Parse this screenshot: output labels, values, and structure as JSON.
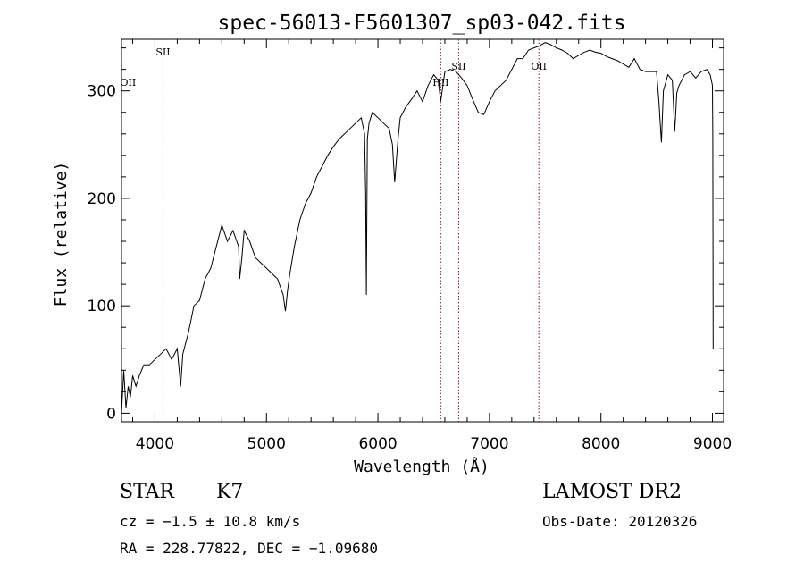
{
  "chart_data": {
    "type": "line",
    "title": "spec-56013-F5601307_sp03-042.fits",
    "xlabel": "Wavelength (Å)",
    "ylabel": "Flux (relative)",
    "xlim": [
      3700,
      9100
    ],
    "ylim": [
      -8,
      348
    ],
    "xticks": [
      4000,
      5000,
      6000,
      7000,
      8000,
      9000
    ],
    "yticks": [
      0,
      100,
      200,
      300
    ],
    "grid": false,
    "series": [
      {
        "x": [
          3700,
          3720,
          3740,
          3760,
          3780,
          3800,
          3830,
          3860,
          3900,
          3950,
          4000,
          4050,
          4100,
          4150,
          4200,
          4230,
          4250,
          4300,
          4350,
          4400,
          4450,
          4500,
          4550,
          4600,
          4650,
          4700,
          4750,
          4760,
          4780,
          4800,
          4850,
          4900,
          4950,
          5000,
          5050,
          5100,
          5150,
          5170,
          5190,
          5210,
          5250,
          5300,
          5350,
          5400,
          5450,
          5500,
          5550,
          5600,
          5650,
          5700,
          5750,
          5800,
          5850,
          5880,
          5890,
          5896,
          5905,
          5920,
          5950,
          6000,
          6050,
          6100,
          6130,
          6150,
          6180,
          6200,
          6250,
          6300,
          6350,
          6400,
          6450,
          6500,
          6540,
          6563,
          6600,
          6650,
          6700,
          6750,
          6800,
          6850,
          6900,
          6950,
          7000,
          7050,
          7100,
          7150,
          7200,
          7250,
          7300,
          7350,
          7400,
          7450,
          7500,
          7550,
          7600,
          7650,
          7700,
          7750,
          7800,
          7850,
          7900,
          7950,
          8000,
          8050,
          8100,
          8150,
          8200,
          8250,
          8300,
          8350,
          8400,
          8450,
          8498,
          8520,
          8542,
          8560,
          8600,
          8640,
          8662,
          8680,
          8700,
          8750,
          8800,
          8850,
          8900,
          8950,
          8980,
          9000,
          9003,
          9006
        ],
        "y": [
          0,
          40,
          5,
          25,
          15,
          35,
          25,
          35,
          45,
          45,
          50,
          55,
          60,
          50,
          60,
          25,
          55,
          75,
          100,
          105,
          125,
          135,
          155,
          175,
          160,
          170,
          155,
          125,
          145,
          170,
          160,
          145,
          140,
          135,
          130,
          125,
          110,
          95,
          115,
          130,
          155,
          180,
          195,
          205,
          220,
          230,
          240,
          248,
          255,
          260,
          265,
          270,
          275,
          260,
          205,
          110,
          255,
          270,
          280,
          275,
          270,
          265,
          250,
          215,
          255,
          275,
          285,
          292,
          300,
          290,
          305,
          315,
          310,
          290,
          318,
          320,
          318,
          312,
          305,
          292,
          280,
          278,
          290,
          300,
          305,
          310,
          320,
          330,
          330,
          338,
          340,
          342,
          345,
          343,
          340,
          338,
          335,
          330,
          333,
          336,
          338,
          336,
          335,
          332,
          330,
          328,
          325,
          322,
          330,
          320,
          318,
          318,
          318,
          290,
          252,
          300,
          315,
          310,
          262,
          298,
          305,
          315,
          318,
          312,
          318,
          320,
          315,
          305,
          260,
          60
        ]
      }
    ],
    "lines": [
      {
        "label": "SII",
        "x": 4072
      },
      {
        "label": "OII",
        "x": 3727
      },
      {
        "label": "HII",
        "x": 6563
      },
      {
        "label": "SII",
        "x": 6724
      },
      {
        "label": "OII",
        "x": 7443
      }
    ]
  },
  "footer": {
    "object_class": "STAR",
    "subclass": "K7",
    "survey": "LAMOST DR2",
    "cz": "cz = −1.5 ± 10.8 km/s",
    "obs_date": "Obs-Date: 20120326",
    "coords": "RA = 228.77822, DEC =  −1.09680"
  },
  "colors": {
    "spectrum": "#000000",
    "line_markers": "#8b1a1a"
  }
}
